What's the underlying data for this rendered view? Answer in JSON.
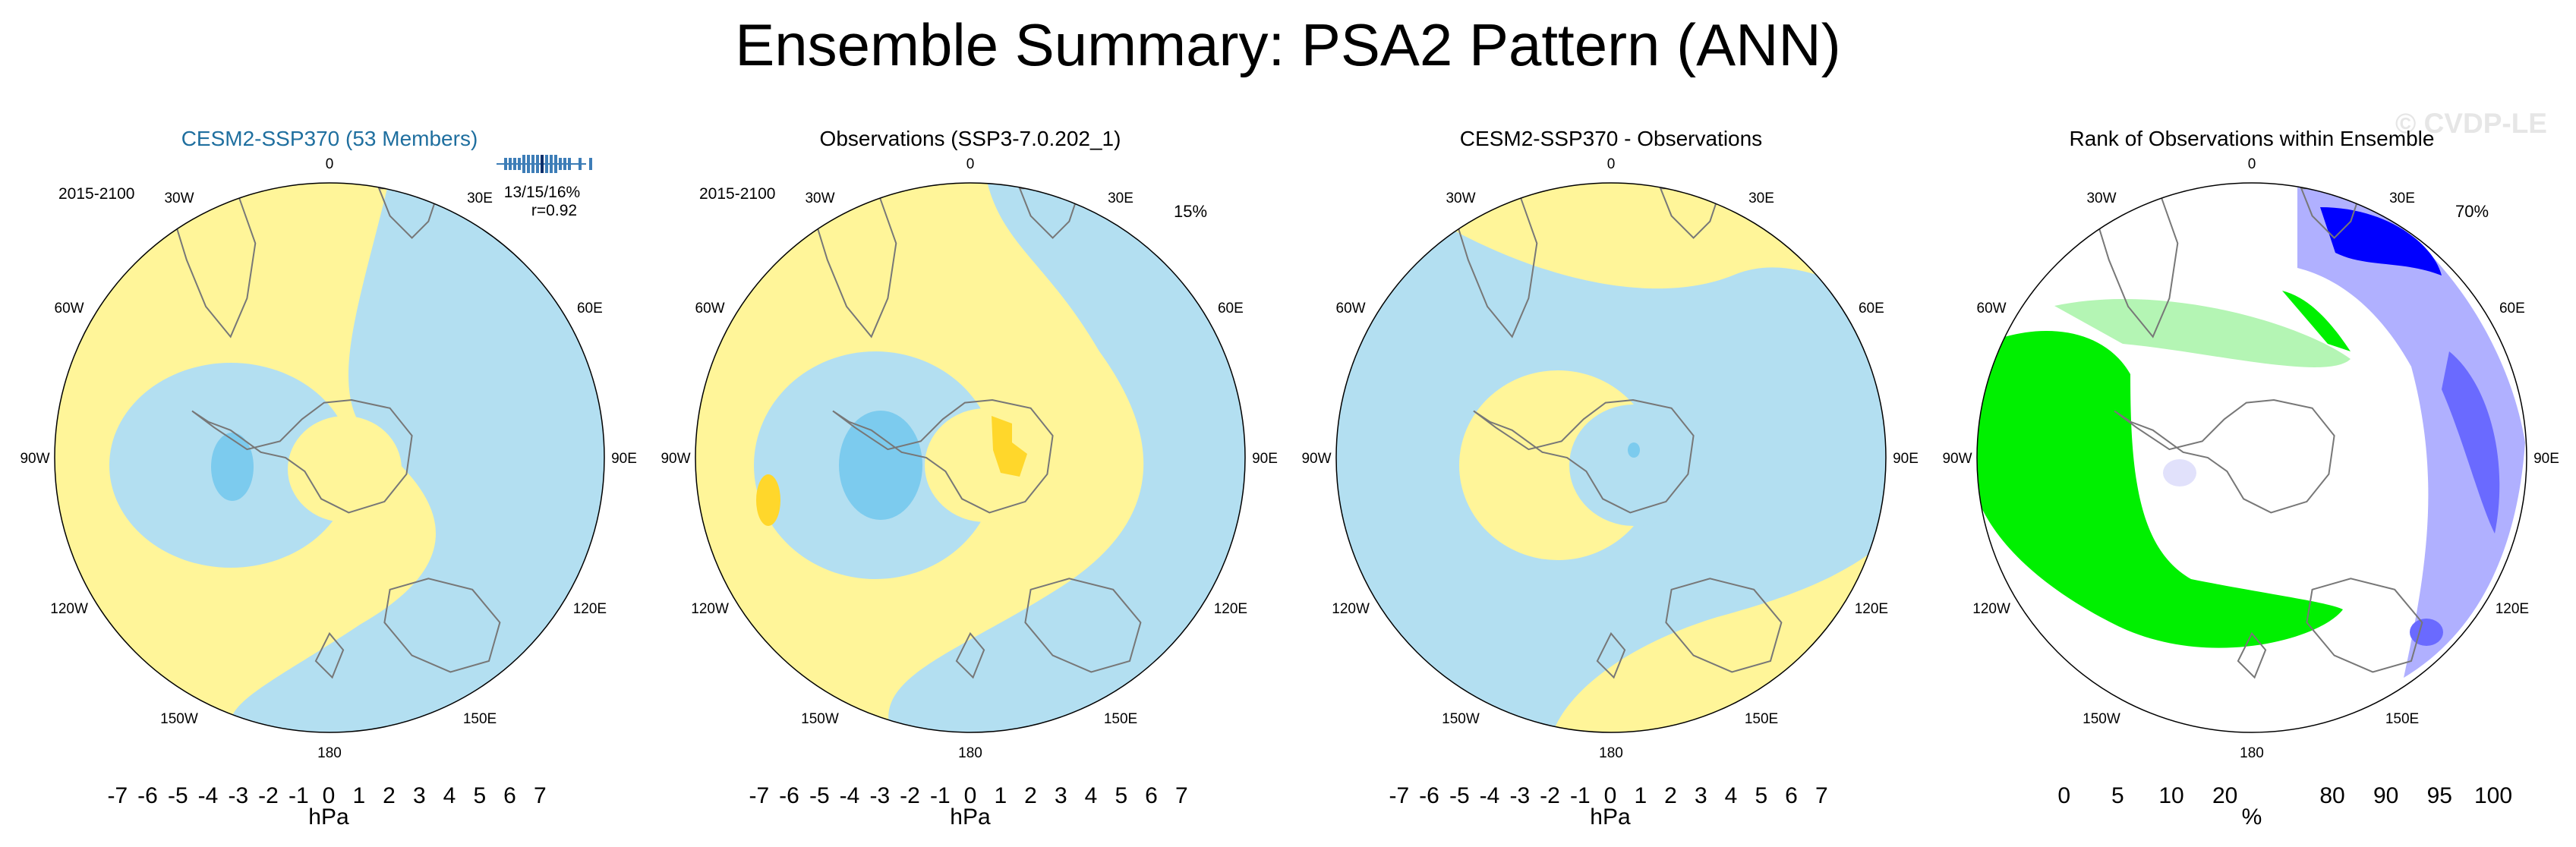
{
  "figure": {
    "title": "Ensemble Summary: PSA2 Pattern (ANN)",
    "watermark": "© CVDP-LE"
  },
  "palette": {
    "hpa_colors": [
      "#8a2be2",
      "#1f1fff",
      "#2f44e6",
      "#3a6be0",
      "#2f8fe8",
      "#10b8f0",
      "#7ccbee",
      "#b3dff1",
      "#fff599",
      "#ffd72b",
      "#ffb400",
      "#ff8a00",
      "#ff5a00",
      "#f22c1a",
      "#cc2222",
      "#ffb0b0"
    ],
    "rank_colors": [
      "#0000ff",
      "#6a6aff",
      "#b0b0ff",
      "#e1e1fb",
      "#ffffff",
      "#ffffff",
      "#e6fbe6",
      "#b4f5b4",
      "#00f000"
    ],
    "land_outline": "#777777",
    "neg_light": "#b3dff1",
    "neg_mid": "#7ccbee",
    "pos_light": "#fff599",
    "pos_mid": "#ffd72b"
  },
  "chart_data": [
    {
      "type": "heatmap",
      "projection": "south-polar-stereographic",
      "title": "CESM2-SSP370 (53 Members)",
      "title_color": "#1f6f9f",
      "period": "2015-2100",
      "stats": [
        "13/15/16%",
        "r=0.92"
      ],
      "has_spread_bar": true,
      "longitude_labels": [
        "0",
        "30E",
        "60E",
        "90E",
        "120E",
        "150E",
        "180",
        "150W",
        "120W",
        "90W",
        "60W",
        "30W"
      ],
      "colorbar": {
        "ticks": [
          "-7",
          "-6",
          "-5",
          "-4",
          "-3",
          "-2",
          "-1",
          "0",
          "1",
          "2",
          "3",
          "4",
          "5",
          "6",
          "7"
        ],
        "units": "hPa",
        "levels": [
          -7,
          -6,
          -5,
          -4,
          -3,
          -2,
          -1,
          0,
          1,
          2,
          3,
          4,
          5,
          6,
          7
        ]
      },
      "fields": [
        {
          "value_range_hPa": [
            -1,
            0
          ],
          "region": "eastern hemisphere band and Amundsen Sea low"
        },
        {
          "value_range_hPa": [
            0,
            1
          ],
          "region": "western Pacific / Atlantic sector"
        },
        {
          "value_range_hPa": [
            -2,
            -1
          ],
          "region": "Amundsen Sea low core"
        }
      ]
    },
    {
      "type": "heatmap",
      "projection": "south-polar-stereographic",
      "title": "Observations (SSP3-7.0.202_1)",
      "period": "2015-2100",
      "stats": [
        "15%"
      ],
      "longitude_labels": [
        "0",
        "30E",
        "60E",
        "90E",
        "120E",
        "150E",
        "180",
        "150W",
        "120W",
        "90W",
        "60W",
        "30W"
      ],
      "colorbar": {
        "ticks": [
          "-7",
          "-6",
          "-5",
          "-4",
          "-3",
          "-2",
          "-1",
          "0",
          "1",
          "2",
          "3",
          "4",
          "5",
          "6",
          "7"
        ],
        "units": "hPa",
        "levels": [
          -7,
          -6,
          -5,
          -4,
          -3,
          -2,
          -1,
          0,
          1,
          2,
          3,
          4,
          5,
          6,
          7
        ]
      },
      "fields": [
        {
          "value_range_hPa": [
            -1,
            0
          ],
          "region": "eastern hemisphere band and Amundsen Sea low"
        },
        {
          "value_range_hPa": [
            0,
            1
          ],
          "region": "western Pacific / Atlantic sector"
        },
        {
          "value_range_hPa": [
            -2,
            -1
          ],
          "region": "Amundsen Sea low core"
        },
        {
          "value_range_hPa": [
            1,
            2
          ],
          "region": "East Antarctica and South Pacific spots"
        }
      ]
    },
    {
      "type": "heatmap",
      "projection": "south-polar-stereographic",
      "title": "CESM2-SSP370 - Observations",
      "longitude_labels": [
        "0",
        "30E",
        "60E",
        "90E",
        "120E",
        "150E",
        "180",
        "150W",
        "120W",
        "90W",
        "60W",
        "30W"
      ],
      "colorbar": {
        "ticks": [
          "-7",
          "-6",
          "-5",
          "-4",
          "-3",
          "-2",
          "-1",
          "0",
          "1",
          "2",
          "3",
          "4",
          "5",
          "6",
          "7"
        ],
        "units": "hPa",
        "levels": [
          -7,
          -6,
          -5,
          -4,
          -3,
          -2,
          -1,
          0,
          1,
          2,
          3,
          4,
          5,
          6,
          7
        ]
      },
      "fields": [
        {
          "value_range_hPa": [
            -1,
            0
          ],
          "region": "most of the domain"
        },
        {
          "value_range_hPa": [
            0,
            1
          ],
          "region": "Antarctic Peninsula ring, northern Atlantic and south-eastern Pacific"
        },
        {
          "value_range_hPa": [
            -2,
            -1
          ],
          "region": "small spot over East Antarctica"
        }
      ]
    },
    {
      "type": "heatmap",
      "projection": "south-polar-stereographic",
      "title": "Rank of Observations within Ensemble",
      "stats": [
        "70%"
      ],
      "longitude_labels": [
        "0",
        "30E",
        "60E",
        "90E",
        "120E",
        "150E",
        "180",
        "150W",
        "120W",
        "90W",
        "60W",
        "30W"
      ],
      "colorbar": {
        "ticks": [
          "0",
          "5",
          "10",
          "20",
          "80",
          "90",
          "95",
          "100"
        ],
        "units": "%",
        "levels": [
          0,
          5,
          10,
          20,
          80,
          90,
          95,
          100
        ]
      },
      "fields": [
        {
          "value_range_pct": [
            95,
            100
          ],
          "region": "South Pacific (90W-120W) and arc toward 150W"
        },
        {
          "value_range_pct": [
            0,
            5
          ],
          "region": "South Indian Ocean 30E-90E and 120E"
        },
        {
          "value_range_pct": [
            80,
            95
          ],
          "region": "ring around Antarctica"
        }
      ]
    }
  ]
}
